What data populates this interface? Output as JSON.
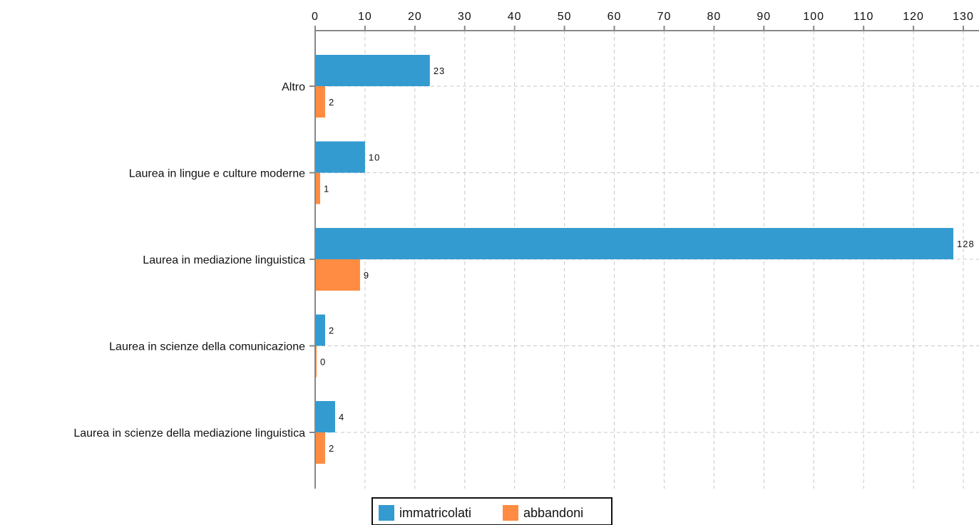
{
  "chart_data": {
    "type": "bar",
    "orientation": "horizontal",
    "categories": [
      "Altro",
      "Laurea in lingue e culture moderne",
      "Laurea in mediazione linguistica",
      "Laurea in scienze della comunicazione",
      "Laurea in scienze della mediazione linguistica"
    ],
    "series": [
      {
        "name": "immatricolati",
        "color": "#339bd0",
        "values": [
          23,
          10,
          128,
          2,
          4
        ]
      },
      {
        "name": "abbandoni",
        "color": "#ff8c42",
        "values": [
          2,
          1,
          9,
          0,
          2
        ]
      }
    ],
    "xlim": [
      0,
      130
    ],
    "xticks": [
      0,
      10,
      20,
      30,
      40,
      50,
      60,
      70,
      80,
      90,
      100,
      110,
      120,
      130
    ],
    "x_axis_position": "top",
    "grid": true,
    "grid_style": "dashed",
    "legend_position": "bottom-center",
    "data_labels": true
  }
}
